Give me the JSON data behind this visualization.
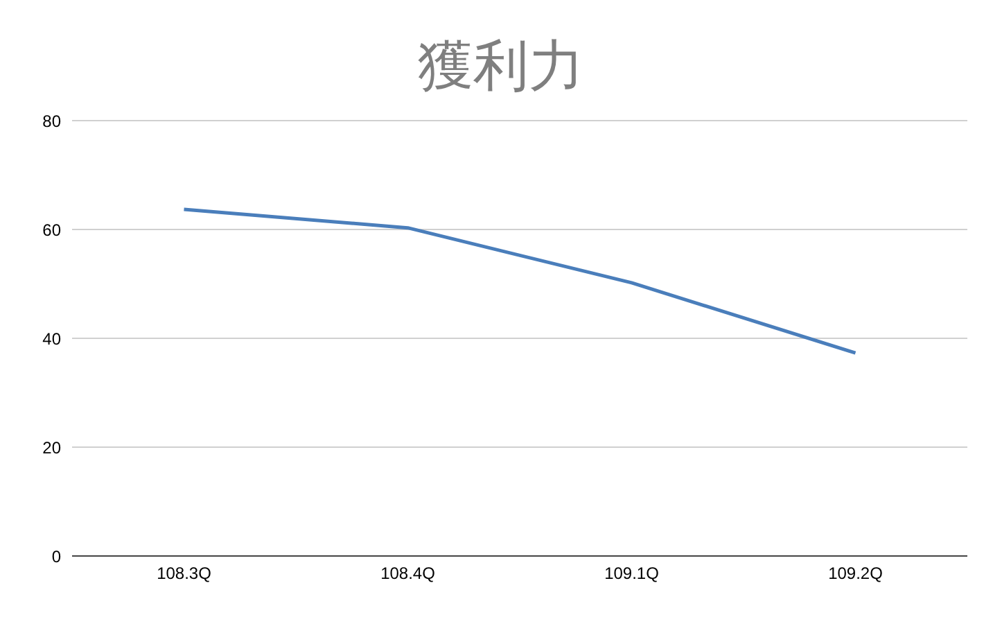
{
  "chart_data": {
    "type": "line",
    "title": "獲利力",
    "categories": [
      "108.3Q",
      "108.4Q",
      "109.1Q",
      "109.2Q"
    ],
    "series": [
      {
        "color": "#4a7ebb",
        "values": [
          63.7,
          60.3,
          50.2,
          37.3
        ]
      }
    ],
    "ylim": [
      0,
      80
    ],
    "yticks": [
      0,
      20,
      40,
      60,
      80
    ],
    "grid": "y",
    "legend": false,
    "marker": "none",
    "line_style": "solid"
  }
}
